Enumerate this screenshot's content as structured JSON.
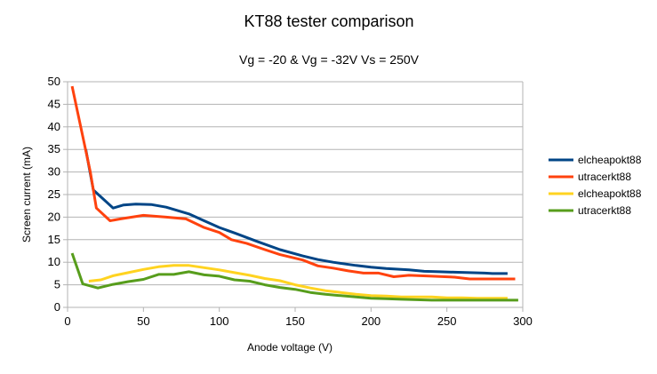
{
  "chart_data": {
    "type": "line",
    "title": "KT88 tester comparison",
    "subtitle": "Vg = -20 & Vg = -32V Vs = 250V",
    "xlabel": "Anode voltage (V)",
    "ylabel": "Screen current (mA)",
    "xlim": [
      0,
      300
    ],
    "ylim": [
      0,
      50
    ],
    "x_ticks": [
      "0",
      "50",
      "100",
      "150",
      "200",
      "250",
      "300"
    ],
    "y_ticks": [
      "0",
      "5",
      "10",
      "15",
      "20",
      "25",
      "30",
      "35",
      "40",
      "45",
      "50"
    ],
    "grid": "horizontal",
    "legend_position": "right",
    "series": [
      {
        "name": "elcheapokt88",
        "color": "#004586",
        "points": [
          [
            12,
            35
          ],
          [
            17,
            26
          ],
          [
            30,
            22
          ],
          [
            37,
            22.7
          ],
          [
            45,
            22.9
          ],
          [
            55,
            22.8
          ],
          [
            65,
            22.2
          ],
          [
            80,
            20.7
          ],
          [
            90,
            19.2
          ],
          [
            100,
            17.7
          ],
          [
            110,
            16.5
          ],
          [
            125,
            14.6
          ],
          [
            140,
            12.8
          ],
          [
            155,
            11.4
          ],
          [
            165,
            10.6
          ],
          [
            175,
            10
          ],
          [
            190,
            9.3
          ],
          [
            200,
            8.9
          ],
          [
            210,
            8.6
          ],
          [
            215,
            8.5
          ],
          [
            225,
            8.3
          ],
          [
            235,
            8.0
          ],
          [
            245,
            7.9
          ],
          [
            255,
            7.8
          ],
          [
            265,
            7.7
          ],
          [
            275,
            7.6
          ],
          [
            280,
            7.5
          ],
          [
            290,
            7.5
          ]
        ]
      },
      {
        "name": "utracerkt88",
        "color": "#ff420e",
        "points": [
          [
            3,
            49
          ],
          [
            15,
            30
          ],
          [
            19,
            22
          ],
          [
            28,
            19.2
          ],
          [
            35,
            19.6
          ],
          [
            50,
            20.4
          ],
          [
            65,
            20
          ],
          [
            78,
            19.6
          ],
          [
            90,
            17.7
          ],
          [
            100,
            16.6
          ],
          [
            108,
            15
          ],
          [
            118,
            14.2
          ],
          [
            130,
            12.8
          ],
          [
            140,
            11.7
          ],
          [
            155,
            10.5
          ],
          [
            165,
            9.2
          ],
          [
            175,
            8.7
          ],
          [
            185,
            8.1
          ],
          [
            195,
            7.6
          ],
          [
            205,
            7.6
          ],
          [
            215,
            6.8
          ],
          [
            225,
            7.1
          ],
          [
            240,
            6.9
          ],
          [
            255,
            6.7
          ],
          [
            265,
            6.3
          ],
          [
            280,
            6.3
          ],
          [
            295,
            6.3
          ]
        ]
      },
      {
        "name": "elcheapokt88",
        "color": "#ffd320",
        "points": [
          [
            14,
            5.8
          ],
          [
            22,
            6.1
          ],
          [
            30,
            7
          ],
          [
            40,
            7.7
          ],
          [
            50,
            8.4
          ],
          [
            60,
            9
          ],
          [
            70,
            9.3
          ],
          [
            80,
            9.3
          ],
          [
            90,
            8.8
          ],
          [
            100,
            8.3
          ],
          [
            110,
            7.7
          ],
          [
            120,
            7.1
          ],
          [
            130,
            6.4
          ],
          [
            140,
            5.9
          ],
          [
            150,
            5.0
          ],
          [
            160,
            4.3
          ],
          [
            170,
            3.7
          ],
          [
            180,
            3.3
          ],
          [
            190,
            2.9
          ],
          [
            200,
            2.6
          ],
          [
            210,
            2.5
          ],
          [
            220,
            2.3
          ],
          [
            230,
            2.3
          ],
          [
            240,
            2.3
          ],
          [
            250,
            2.1
          ],
          [
            260,
            2.1
          ],
          [
            270,
            2.0
          ],
          [
            280,
            2.0
          ],
          [
            290,
            2.0
          ]
        ]
      },
      {
        "name": "utracerkt88",
        "color": "#579d1c",
        "points": [
          [
            3,
            12
          ],
          [
            10,
            5.2
          ],
          [
            20,
            4.3
          ],
          [
            30,
            5.1
          ],
          [
            40,
            5.7
          ],
          [
            50,
            6.2
          ],
          [
            60,
            7.3
          ],
          [
            70,
            7.3
          ],
          [
            80,
            7.9
          ],
          [
            90,
            7.2
          ],
          [
            100,
            6.9
          ],
          [
            110,
            6.1
          ],
          [
            120,
            5.8
          ],
          [
            130,
            5.0
          ],
          [
            140,
            4.4
          ],
          [
            150,
            4.0
          ],
          [
            160,
            3.3
          ],
          [
            170,
            2.9
          ],
          [
            180,
            2.6
          ],
          [
            190,
            2.3
          ],
          [
            200,
            2.0
          ],
          [
            210,
            1.9
          ],
          [
            220,
            1.8
          ],
          [
            230,
            1.7
          ],
          [
            240,
            1.6
          ],
          [
            250,
            1.6
          ],
          [
            260,
            1.6
          ],
          [
            270,
            1.6
          ],
          [
            280,
            1.6
          ],
          [
            290,
            1.6
          ],
          [
            297,
            1.6
          ]
        ]
      }
    ]
  }
}
